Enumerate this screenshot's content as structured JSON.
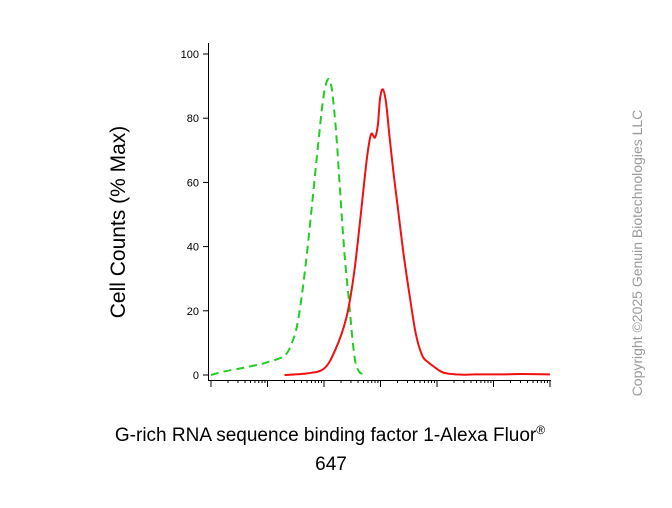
{
  "chart_data": {
    "type": "line",
    "xlabel_main": "G-rich RNA sequence binding factor 1-Alexa Fluor",
    "xlabel_sup": "®",
    "xlabel_line2": "647",
    "ylabel": "Cell Counts (% Max)",
    "xscale": "log",
    "xlim": [
      1,
      1000000
    ],
    "ylim": [
      0,
      100
    ],
    "yticks": [
      0,
      20,
      40,
      60,
      80,
      100
    ],
    "ytick_labels": [
      "0",
      "20",
      "40",
      "60",
      "80",
      "100"
    ],
    "grid": false,
    "legend": "none",
    "series": [
      {
        "color": "#22cc22",
        "style": "dashed",
        "x": [
          1.0,
          1.6,
          3.2,
          6.0,
          10.0,
          20.0,
          27.0,
          33.0,
          40.0,
          50.0,
          63.0,
          79.0,
          95.0,
          110.0,
          125.0,
          140.0,
          165.0,
          195.0,
          230.0,
          280.0,
          320.0,
          360.0,
          420.0,
          480.0,
          540.0
        ],
        "y": [
          0,
          1,
          2,
          3,
          4,
          6,
          10,
          15,
          24,
          38,
          55,
          72,
          85,
          91,
          92,
          88,
          75,
          56,
          38,
          22,
          11,
          4,
          1,
          0.3,
          0
        ]
      },
      {
        "color": "#ee1111",
        "style": "solid",
        "x": [
          20.0,
          50.0,
          100.0,
          160.0,
          250.0,
          330.0,
          400.0,
          480.0,
          580.0,
          680.0,
          800.0,
          900.0,
          980.0,
          1100.0,
          1250.0,
          1450.0,
          1700.0,
          2000.0,
          2500.0,
          3200.0,
          4200.0,
          5500.0,
          7000.0,
          9000.0,
          12000.0,
          16000.0,
          22000.0,
          30000.0,
          45000.0,
          80000.0,
          150000.0,
          300000.0,
          1000000.0
        ],
        "y": [
          0,
          0.5,
          2,
          8,
          18,
          30,
          42,
          55,
          68,
          75,
          74,
          78,
          86,
          89,
          85,
          74,
          63,
          53,
          39,
          26,
          13,
          6,
          4,
          2.5,
          1,
          0.4,
          0.2,
          0.1,
          0.2,
          0.2,
          0.2,
          0.3,
          0.2
        ]
      }
    ]
  },
  "watermark": "Copyright ©2025 Genuin Biotechnologies LLC"
}
